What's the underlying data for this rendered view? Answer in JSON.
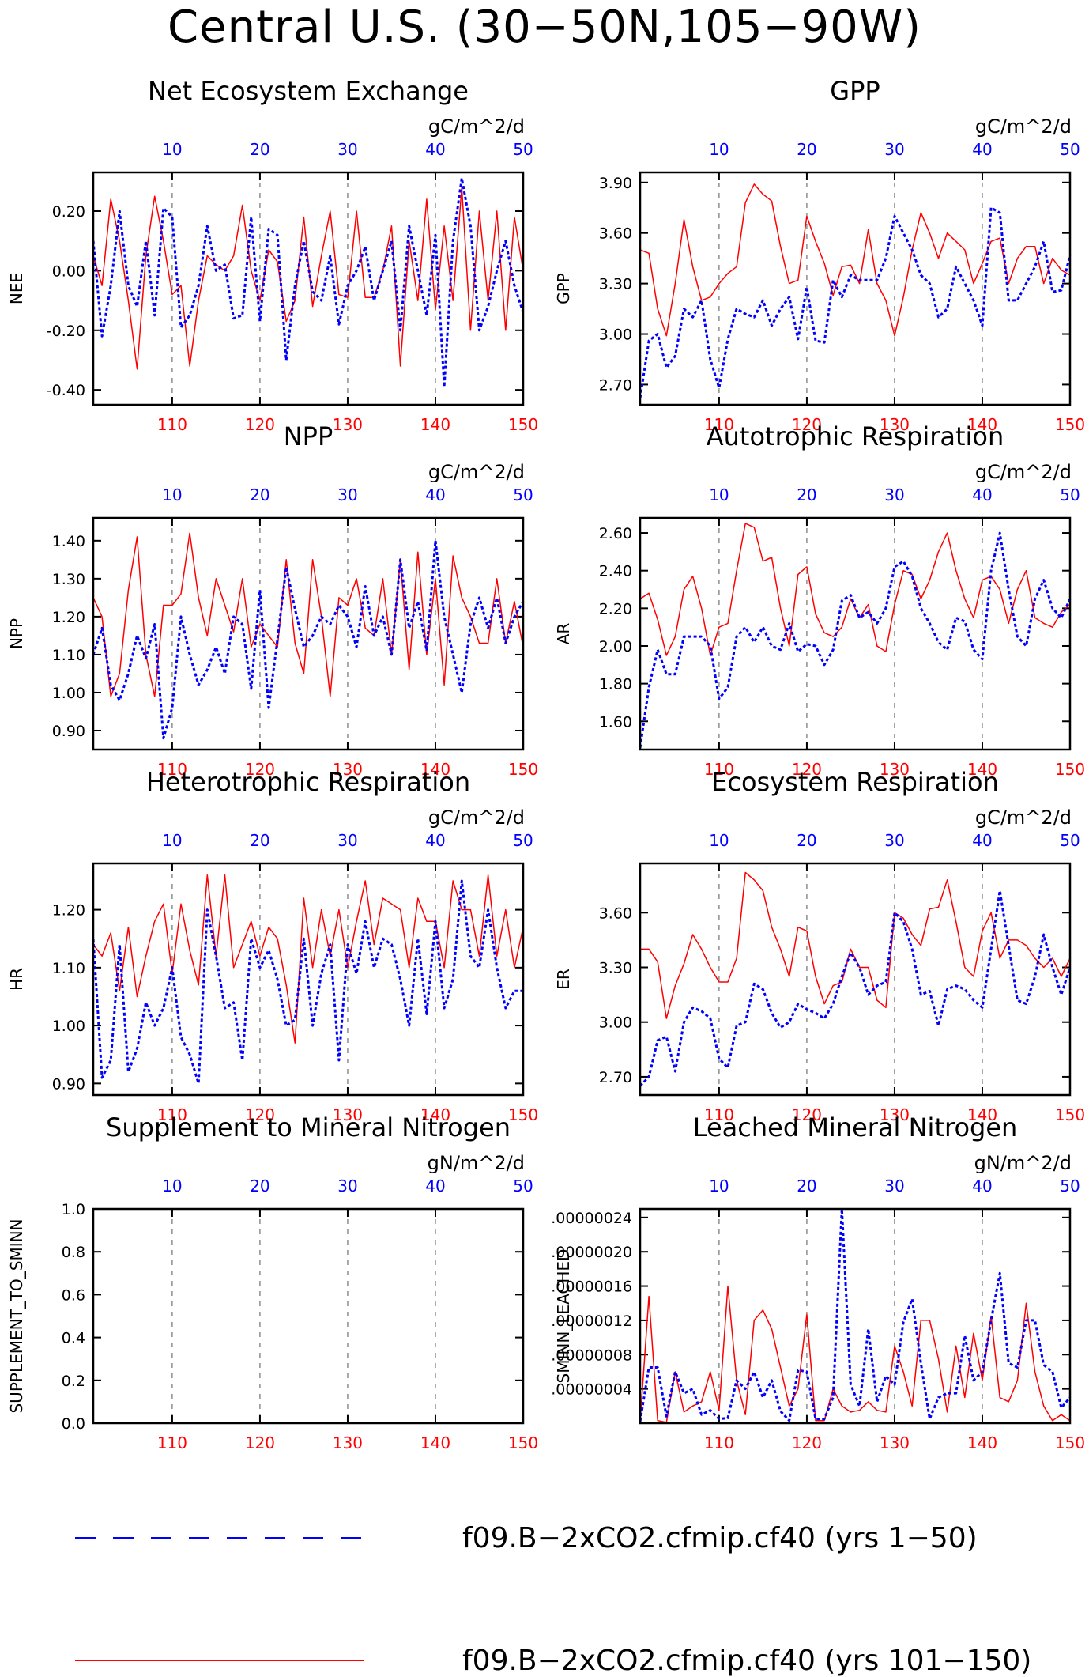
{
  "title": "Central U.S. (30−50N,105−90W)",
  "legend": [
    {
      "label": "f09.B−2xCO2.cfmip.cf40 (yrs 1−50)",
      "color": "#0000ff",
      "style": "dashed"
    },
    {
      "label": "f09.B−2xCO2.cfmip.cf40 (yrs 101−150)",
      "color": "#ff0000",
      "style": "solid"
    }
  ],
  "chart_data": [
    {
      "type": "line",
      "title": "Net Ecosystem Exchange",
      "ylabel": "NEE",
      "units": "gC/m^2/d",
      "bottom_ticks": [
        "110",
        "120",
        "130",
        "140",
        "150"
      ],
      "top_ticks": [
        "10",
        "20",
        "30",
        "40",
        "50"
      ],
      "xlim": [
        101,
        150
      ],
      "ylim": [
        -0.45,
        0.33
      ],
      "yticks": [
        -0.4,
        -0.2,
        0.0,
        0.2
      ],
      "ytick_labels": [
        "-0.40",
        "-0.20",
        "0.00",
        "0.20"
      ],
      "series": [
        {
          "values": [
            0.05,
            -0.05,
            0.24,
            0.1,
            -0.1,
            -0.33,
            0.05,
            0.25,
            0.1,
            -0.08,
            -0.05,
            -0.32,
            -0.1,
            0.05,
            0.02,
            0.0,
            0.05,
            0.22,
            0.0,
            -0.1,
            0.07,
            0.03,
            -0.17,
            -0.1,
            0.18,
            -0.12,
            0.05,
            0.2,
            -0.08,
            -0.09,
            0.2,
            -0.09,
            -0.09,
            0.0,
            0.15,
            -0.32,
            0.1,
            -0.1,
            0.24,
            -0.13,
            0.15,
            -0.1,
            0.28,
            -0.2,
            0.2,
            -0.1,
            0.2,
            -0.2,
            0.18,
            0.0
          ]
        },
        {
          "values": [
            0.1,
            -0.22,
            -0.05,
            0.2,
            -0.05,
            -0.12,
            0.1,
            -0.15,
            0.21,
            0.18,
            -0.19,
            -0.15,
            -0.05,
            0.15,
            0.0,
            0.02,
            -0.16,
            -0.15,
            0.18,
            -0.17,
            0.14,
            0.12,
            -0.3,
            -0.05,
            0.1,
            -0.07,
            -0.1,
            0.05,
            -0.18,
            -0.05,
            0.0,
            0.08,
            -0.1,
            0.0,
            0.1,
            -0.2,
            0.15,
            0.0,
            -0.15,
            0.12,
            -0.39,
            0.1,
            0.31,
            0.15,
            -0.2,
            -0.12,
            0.0,
            0.1,
            -0.05,
            -0.14
          ]
        }
      ]
    },
    {
      "type": "line",
      "title": "GPP",
      "ylabel": "GPP",
      "units": "gC/m^2/d",
      "bottom_ticks": [
        "110",
        "120",
        "130",
        "140",
        "150"
      ],
      "top_ticks": [
        "10",
        "20",
        "30",
        "40",
        "50"
      ],
      "xlim": [
        101,
        150
      ],
      "ylim": [
        2.58,
        3.96
      ],
      "yticks": [
        2.7,
        3.0,
        3.3,
        3.6,
        3.9
      ],
      "ytick_labels": [
        "2.70",
        "3.00",
        "3.30",
        "3.60",
        "3.90"
      ],
      "series": [
        {
          "values": [
            3.5,
            3.48,
            3.15,
            2.99,
            3.3,
            3.68,
            3.4,
            3.2,
            3.22,
            3.3,
            3.36,
            3.4,
            3.78,
            3.89,
            3.83,
            3.79,
            3.52,
            3.3,
            3.32,
            3.7,
            3.55,
            3.42,
            3.23,
            3.4,
            3.41,
            3.3,
            3.62,
            3.3,
            3.2,
            2.99,
            3.22,
            3.5,
            3.72,
            3.6,
            3.45,
            3.6,
            3.55,
            3.5,
            3.3,
            3.42,
            3.55,
            3.57,
            3.3,
            3.45,
            3.52,
            3.52,
            3.3,
            3.45,
            3.38,
            3.35
          ]
        },
        {
          "values": [
            2.62,
            2.96,
            3.0,
            2.8,
            2.87,
            3.15,
            3.1,
            3.2,
            2.85,
            2.68,
            2.97,
            3.15,
            3.12,
            3.1,
            3.2,
            3.05,
            3.15,
            3.22,
            2.97,
            3.28,
            2.96,
            2.95,
            3.32,
            3.22,
            3.35,
            3.32,
            3.32,
            3.32,
            3.45,
            3.7,
            3.6,
            3.5,
            3.35,
            3.3,
            3.1,
            3.15,
            3.4,
            3.3,
            3.2,
            3.05,
            3.75,
            3.72,
            3.2,
            3.2,
            3.3,
            3.4,
            3.55,
            3.25,
            3.26,
            3.47
          ]
        }
      ]
    },
    {
      "type": "line",
      "title": "NPP",
      "ylabel": "NPP",
      "units": "gC/m^2/d",
      "bottom_ticks": [
        "110",
        "120",
        "130",
        "140",
        "150"
      ],
      "top_ticks": [
        "10",
        "20",
        "30",
        "40",
        "50"
      ],
      "xlim": [
        101,
        150
      ],
      "ylim": [
        0.85,
        1.46
      ],
      "yticks": [
        0.9,
        1.0,
        1.1,
        1.2,
        1.3,
        1.4
      ],
      "ytick_labels": [
        "0.90",
        "1.00",
        "1.10",
        "1.20",
        "1.30",
        "1.40"
      ],
      "series": [
        {
          "values": [
            1.25,
            1.2,
            0.99,
            1.05,
            1.27,
            1.41,
            1.1,
            0.99,
            1.23,
            1.23,
            1.26,
            1.42,
            1.25,
            1.15,
            1.3,
            1.23,
            1.16,
            1.3,
            1.12,
            1.18,
            1.15,
            1.12,
            1.35,
            1.13,
            1.05,
            1.35,
            1.2,
            0.99,
            1.25,
            1.23,
            1.3,
            1.17,
            1.15,
            1.3,
            1.1,
            1.35,
            1.06,
            1.37,
            1.1,
            1.3,
            1.02,
            1.36,
            1.25,
            1.2,
            1.13,
            1.13,
            1.3,
            1.13,
            1.24,
            1.12
          ]
        },
        {
          "values": [
            1.1,
            1.17,
            1.02,
            0.98,
            1.05,
            1.15,
            1.09,
            1.18,
            0.88,
            0.96,
            1.2,
            1.1,
            1.02,
            1.06,
            1.12,
            1.05,
            1.2,
            1.18,
            1.01,
            1.27,
            0.96,
            1.14,
            1.33,
            1.22,
            1.12,
            1.15,
            1.2,
            1.18,
            1.23,
            1.2,
            1.12,
            1.28,
            1.15,
            1.2,
            1.1,
            1.35,
            1.17,
            1.24,
            1.11,
            1.4,
            1.2,
            1.1,
            1.0,
            1.18,
            1.25,
            1.17,
            1.25,
            1.13,
            1.2,
            1.24
          ]
        }
      ]
    },
    {
      "type": "line",
      "title": "Autotrophic Respiration",
      "ylabel": "AR",
      "units": "gC/m^2/d",
      "bottom_ticks": [
        "110",
        "120",
        "130",
        "140",
        "150"
      ],
      "top_ticks": [
        "10",
        "20",
        "30",
        "40",
        "50"
      ],
      "xlim": [
        101,
        150
      ],
      "ylim": [
        1.45,
        2.68
      ],
      "yticks": [
        1.6,
        1.8,
        2.0,
        2.2,
        2.4,
        2.6
      ],
      "ytick_labels": [
        "1.60",
        "1.80",
        "2.00",
        "2.20",
        "2.40",
        "2.60"
      ],
      "series": [
        {
          "values": [
            2.25,
            2.28,
            2.14,
            1.95,
            2.05,
            2.3,
            2.37,
            2.2,
            1.95,
            2.1,
            2.12,
            2.4,
            2.65,
            2.63,
            2.45,
            2.47,
            2.2,
            2.0,
            2.38,
            2.42,
            2.17,
            2.07,
            2.05,
            2.1,
            2.25,
            2.15,
            2.22,
            2.0,
            1.97,
            2.22,
            2.4,
            2.38,
            2.25,
            2.35,
            2.5,
            2.6,
            2.4,
            2.25,
            2.15,
            2.35,
            2.37,
            2.3,
            2.12,
            2.3,
            2.4,
            2.15,
            2.12,
            2.1,
            2.18,
            2.22
          ]
        },
        {
          "values": [
            1.46,
            1.78,
            1.98,
            1.85,
            1.85,
            2.05,
            2.05,
            2.05,
            2.0,
            1.72,
            1.78,
            2.05,
            2.1,
            2.02,
            2.1,
            2.0,
            1.98,
            2.12,
            1.97,
            2.01,
            2.0,
            1.9,
            1.98,
            2.24,
            2.27,
            2.15,
            2.18,
            2.12,
            2.2,
            2.42,
            2.45,
            2.37,
            2.2,
            2.12,
            2.02,
            1.98,
            2.15,
            2.13,
            1.98,
            1.93,
            2.4,
            2.6,
            2.3,
            2.05,
            2.0,
            2.25,
            2.35,
            2.2,
            2.15,
            2.25
          ]
        }
      ]
    },
    {
      "type": "line",
      "title": "Heterotrophic Respiration",
      "ylabel": "HR",
      "units": "gC/m^2/d",
      "bottom_ticks": [
        "110",
        "120",
        "130",
        "140",
        "150"
      ],
      "top_ticks": [
        "10",
        "20",
        "30",
        "40",
        "50"
      ],
      "xlim": [
        101,
        150
      ],
      "ylim": [
        0.88,
        1.28
      ],
      "yticks": [
        0.9,
        1.0,
        1.1,
        1.2
      ],
      "ytick_labels": [
        "0.90",
        "1.00",
        "1.10",
        "1.20"
      ],
      "series": [
        {
          "values": [
            1.14,
            1.12,
            1.16,
            1.06,
            1.17,
            1.05,
            1.12,
            1.18,
            1.21,
            1.09,
            1.21,
            1.13,
            1.07,
            1.26,
            1.12,
            1.26,
            1.1,
            1.14,
            1.18,
            1.12,
            1.17,
            1.15,
            1.07,
            0.97,
            1.22,
            1.1,
            1.2,
            1.12,
            1.2,
            1.1,
            1.18,
            1.25,
            1.14,
            1.22,
            1.21,
            1.2,
            1.1,
            1.22,
            1.18,
            1.18,
            1.1,
            1.25,
            1.2,
            1.2,
            1.12,
            1.26,
            1.12,
            1.2,
            1.1,
            1.17
          ]
        },
        {
          "values": [
            1.15,
            0.91,
            0.94,
            1.14,
            0.92,
            0.96,
            1.04,
            1.0,
            1.03,
            1.1,
            0.98,
            0.95,
            0.9,
            1.2,
            1.12,
            1.03,
            1.04,
            0.94,
            1.15,
            1.1,
            1.13,
            1.08,
            1.0,
            1.01,
            1.15,
            1.0,
            1.09,
            1.14,
            0.94,
            1.14,
            1.09,
            1.18,
            1.1,
            1.15,
            1.14,
            1.08,
            1.0,
            1.15,
            1.02,
            1.18,
            1.03,
            1.08,
            1.25,
            1.12,
            1.1,
            1.2,
            1.1,
            1.03,
            1.06,
            1.06
          ]
        }
      ]
    },
    {
      "type": "line",
      "title": "Ecosystem Respiration",
      "ylabel": "ER",
      "units": "gC/m^2/d",
      "bottom_ticks": [
        "110",
        "120",
        "130",
        "140",
        "150"
      ],
      "top_ticks": [
        "10",
        "20",
        "30",
        "40",
        "50"
      ],
      "xlim": [
        101,
        150
      ],
      "ylim": [
        2.6,
        3.87
      ],
      "yticks": [
        2.7,
        3.0,
        3.3,
        3.6
      ],
      "ytick_labels": [
        "2.70",
        "3.00",
        "3.30",
        "3.60"
      ],
      "series": [
        {
          "values": [
            3.4,
            3.4,
            3.33,
            3.02,
            3.2,
            3.32,
            3.48,
            3.4,
            3.3,
            3.22,
            3.22,
            3.35,
            3.82,
            3.78,
            3.72,
            3.52,
            3.4,
            3.25,
            3.52,
            3.5,
            3.25,
            3.1,
            3.2,
            3.22,
            3.4,
            3.3,
            3.3,
            3.12,
            3.08,
            3.6,
            3.57,
            3.48,
            3.42,
            3.62,
            3.63,
            3.78,
            3.55,
            3.3,
            3.25,
            3.5,
            3.6,
            3.35,
            3.45,
            3.45,
            3.42,
            3.35,
            3.3,
            3.35,
            3.25,
            3.35
          ]
        },
        {
          "values": [
            2.65,
            2.7,
            2.9,
            2.92,
            2.73,
            3.0,
            3.08,
            3.06,
            3.02,
            2.8,
            2.75,
            2.98,
            3.0,
            3.21,
            3.18,
            3.05,
            2.97,
            3.0,
            3.1,
            3.07,
            3.05,
            3.02,
            3.1,
            3.25,
            3.38,
            3.3,
            3.15,
            3.2,
            3.22,
            3.6,
            3.55,
            3.4,
            3.15,
            3.17,
            2.98,
            3.18,
            3.2,
            3.18,
            3.12,
            3.08,
            3.4,
            3.72,
            3.42,
            3.12,
            3.1,
            3.25,
            3.48,
            3.3,
            3.15,
            3.3
          ]
        }
      ]
    },
    {
      "type": "line",
      "title": "Supplement to Mineral Nitrogen",
      "ylabel": "SUPPLEMENT_TO_SMINN",
      "units": "gN/m^2/d",
      "bottom_ticks": [
        "110",
        "120",
        "130",
        "140",
        "150"
      ],
      "top_ticks": [
        "10",
        "20",
        "30",
        "40",
        "50"
      ],
      "xlim": [
        101,
        150
      ],
      "ylim": [
        0.0,
        1.0
      ],
      "yticks": [
        0.0,
        0.2,
        0.4,
        0.6,
        0.8,
        1.0
      ],
      "ytick_labels": [
        "0.0",
        "0.2",
        "0.4",
        "0.6",
        "0.8",
        "1.0"
      ],
      "series": []
    },
    {
      "type": "line",
      "title": "Leached Mineral Nitrogen",
      "ylabel": "SMINN_LEACHED",
      "units": "gN/m^2/d",
      "bottom_ticks": [
        "110",
        "120",
        "130",
        "140",
        "150"
      ],
      "top_ticks": [
        "10",
        "20",
        "30",
        "40",
        "50"
      ],
      "xlim": [
        101,
        150
      ],
      "ylim": [
        0.0,
        2.5e-07
      ],
      "yticks": [
        4e-08,
        8e-08,
        1.2e-07,
        1.6e-07,
        2e-07,
        2.4e-07
      ],
      "ytick_labels": [
        ".00000004",
        ".00000008",
        ".00000012",
        ".00000016",
        ".00000020",
        ".00000024"
      ],
      "series": [
        {
          "values": [
            1.5e-09,
            1.48e-07,
            3e-09,
            1e-09,
            6e-08,
            1.3e-08,
            2e-08,
            2.5e-08,
            6e-08,
            1.5e-08,
            1.6e-07,
            5e-08,
            1e-08,
            1.2e-07,
            1.32e-07,
            1.1e-07,
            6.5e-08,
            2e-08,
            4e-08,
            1.27e-07,
            3e-09,
            3e-09,
            4e-08,
            2e-08,
            1.3e-08,
            1.5e-08,
            2.5e-08,
            1.5e-08,
            1.3e-08,
            9e-08,
            6e-08,
            2e-08,
            1.2e-07,
            1.2e-07,
            7.5e-08,
            1.3e-08,
            9e-08,
            3e-08,
            1.05e-07,
            5e-08,
            1.25e-07,
            3e-08,
            2.5e-08,
            5e-08,
            1.4e-07,
            6e-08,
            2e-08,
            3e-09,
            1e-08,
            3e-09
          ]
        },
        {
          "values": [
            2e-09,
            6.5e-08,
            6.5e-08,
            8e-09,
            6e-08,
            3.5e-08,
            4e-08,
            1e-08,
            1.5e-08,
            5e-09,
            6e-09,
            5e-08,
            4e-08,
            6e-08,
            3e-08,
            5e-08,
            1.4e-08,
            3e-09,
            6.2e-08,
            6e-08,
            5e-09,
            5e-09,
            3e-08,
            2.5e-07,
            4.5e-08,
            2e-08,
            1.1e-07,
            2.5e-08,
            5.5e-08,
            4.5e-08,
            1.18e-07,
            1.45e-07,
            7e-08,
            5e-09,
            3e-08,
            3.5e-08,
            3.5e-08,
            1.02e-07,
            5e-08,
            6e-08,
            1.2e-07,
            1.75e-07,
            7e-08,
            6.5e-08,
            1.2e-07,
            1.2e-07,
            6.8e-08,
            6e-08,
            1.8e-08,
            3e-08
          ]
        }
      ]
    }
  ]
}
